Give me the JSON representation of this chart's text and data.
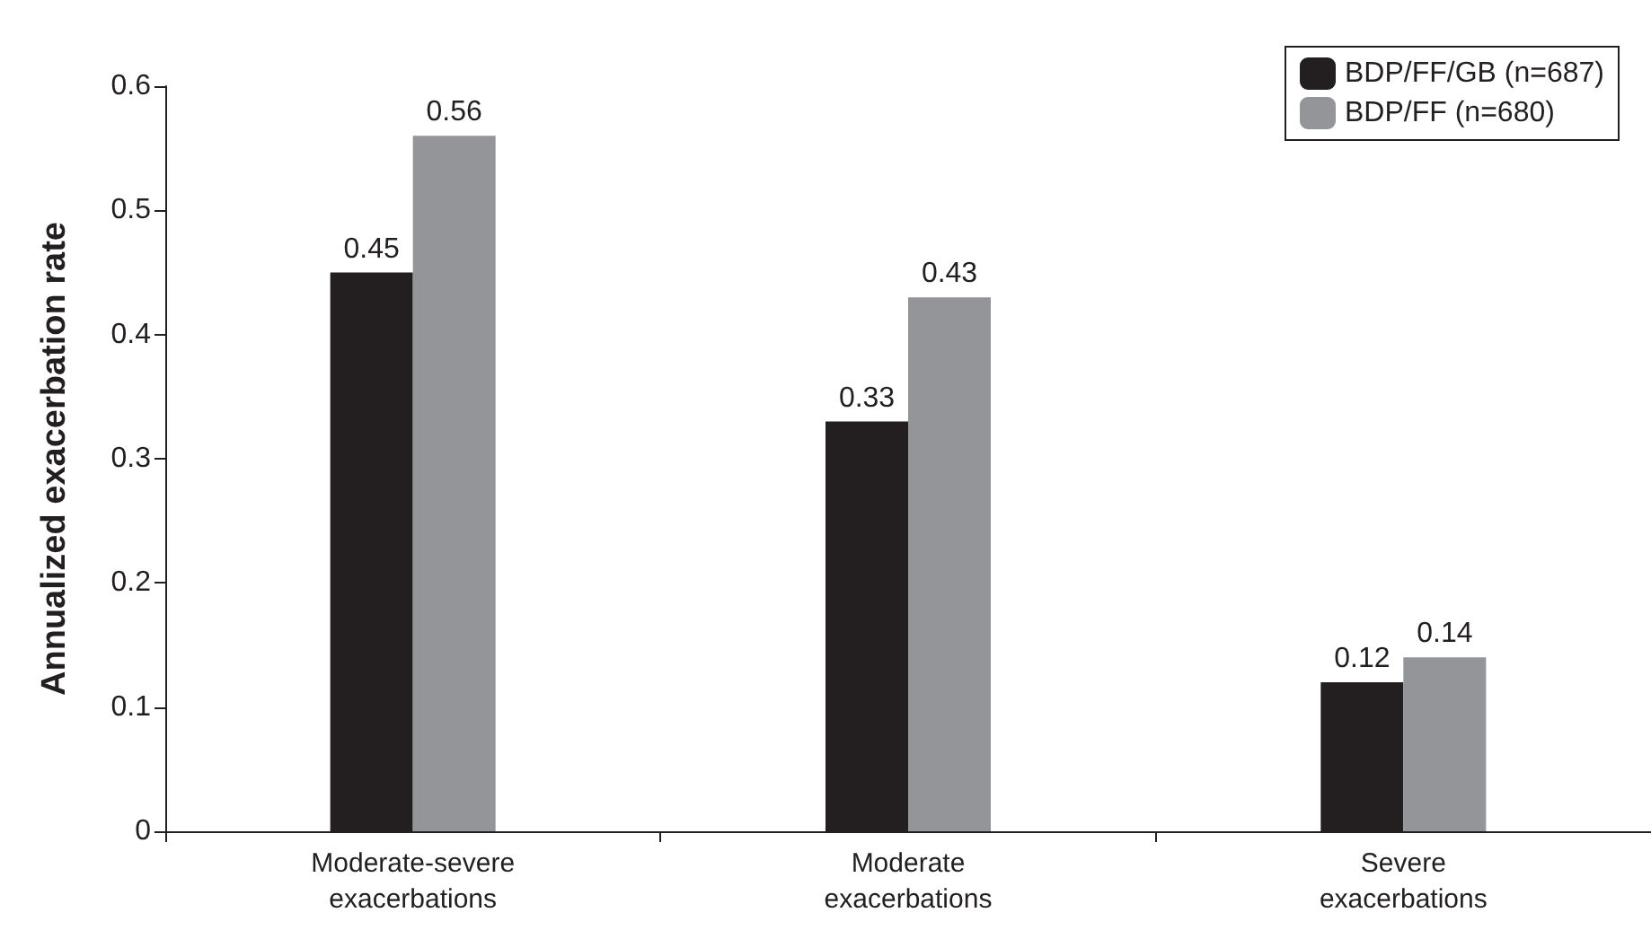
{
  "chart_data": {
    "type": "bar",
    "ylabel": "Annualized exacerbation rate",
    "categories": [
      "Moderate-severe\nexacerbations",
      "Moderate\nexacerbations",
      "Severe\nexacerbations"
    ],
    "series": [
      {
        "name": "BDP/FF/GB (n=687)",
        "color": "#231f20",
        "values": [
          0.45,
          0.33,
          0.12
        ]
      },
      {
        "name": "BDP/FF (n=680)",
        "color": "#939598",
        "values": [
          0.56,
          0.43,
          0.14
        ]
      }
    ],
    "ylim": [
      0,
      0.6
    ],
    "yticks": [
      0,
      0.1,
      0.2,
      0.3,
      0.4,
      0.5,
      0.6
    ],
    "data_labels": true,
    "grid": false,
    "legend": "top right"
  }
}
